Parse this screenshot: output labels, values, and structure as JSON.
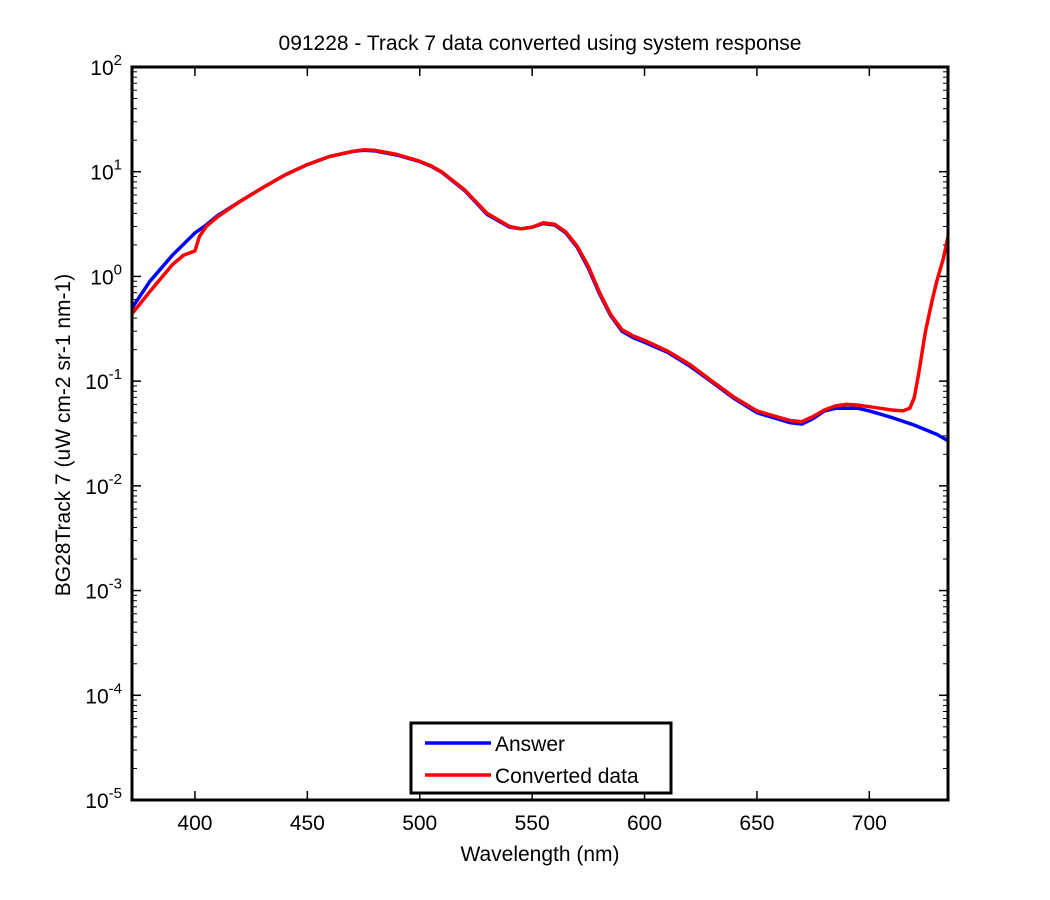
{
  "chart_data": {
    "type": "line",
    "title": "091228 - Track 7 data converted using system response",
    "xlabel": "Wavelength (nm)",
    "ylabel": "BG28Track 7 (uW cm-2 sr-1 nm-1)",
    "xlim": [
      372,
      735
    ],
    "ylim": [
      1e-05,
      100
    ],
    "yscale": "log",
    "grid": false,
    "legend_position": "bottom-center",
    "xticks": [
      400,
      450,
      500,
      550,
      600,
      650,
      700
    ],
    "xtick_labels": [
      "400",
      "450",
      "500",
      "550",
      "600",
      "650",
      "700"
    ],
    "yticks": [
      {
        "value": 1e-05,
        "base": "10",
        "exp": "-5"
      },
      {
        "value": 0.0001,
        "base": "10",
        "exp": "-4"
      },
      {
        "value": 0.001,
        "base": "10",
        "exp": "-3"
      },
      {
        "value": 0.01,
        "base": "10",
        "exp": "-2"
      },
      {
        "value": 0.1,
        "base": "10",
        "exp": "-1"
      },
      {
        "value": 1,
        "base": "10",
        "exp": "0"
      },
      {
        "value": 10,
        "base": "10",
        "exp": "1"
      },
      {
        "value": 100,
        "base": "10",
        "exp": "2"
      }
    ],
    "series": [
      {
        "name": "Answer",
        "color": "#0000ff",
        "x": [
          372,
          380,
          390,
          400,
          405,
          410,
          420,
          430,
          440,
          450,
          460,
          470,
          475,
          480,
          490,
          500,
          505,
          510,
          520,
          530,
          540,
          545,
          550,
          555,
          560,
          565,
          570,
          575,
          580,
          585,
          590,
          595,
          600,
          610,
          620,
          630,
          640,
          650,
          660,
          665,
          670,
          675,
          680,
          685,
          690,
          695,
          700,
          710,
          720,
          730,
          735
        ],
        "y": [
          0.5,
          0.9,
          1.6,
          2.6,
          3.1,
          3.8,
          5.2,
          7.0,
          9.3,
          11.7,
          14.0,
          15.6,
          16.0,
          15.8,
          14.4,
          12.5,
          11.3,
          9.8,
          6.6,
          3.9,
          2.95,
          2.85,
          2.95,
          3.2,
          3.1,
          2.6,
          1.9,
          1.2,
          0.68,
          0.42,
          0.3,
          0.26,
          0.235,
          0.19,
          0.14,
          0.098,
          0.068,
          0.05,
          0.043,
          0.04,
          0.039,
          0.044,
          0.052,
          0.055,
          0.055,
          0.055,
          0.052,
          0.045,
          0.038,
          0.031,
          0.027
        ]
      },
      {
        "name": "Converted data",
        "color": "#ff0000",
        "x": [
          372,
          380,
          390,
          395,
          400,
          402,
          405,
          410,
          420,
          430,
          440,
          450,
          460,
          470,
          475,
          480,
          490,
          500,
          505,
          510,
          520,
          530,
          540,
          545,
          550,
          555,
          560,
          565,
          570,
          575,
          580,
          585,
          590,
          595,
          600,
          610,
          620,
          630,
          640,
          650,
          660,
          665,
          670,
          675,
          680,
          685,
          690,
          695,
          700,
          705,
          710,
          715,
          718,
          720,
          722,
          725,
          728,
          730,
          733,
          735
        ],
        "y": [
          0.44,
          0.72,
          1.3,
          1.6,
          1.75,
          2.4,
          3.0,
          3.7,
          5.2,
          7.0,
          9.3,
          11.7,
          14.0,
          15.6,
          16.2,
          16.0,
          14.6,
          12.6,
          11.4,
          9.9,
          6.7,
          4.0,
          3.0,
          2.85,
          2.95,
          3.25,
          3.15,
          2.65,
          1.95,
          1.25,
          0.7,
          0.43,
          0.31,
          0.27,
          0.245,
          0.195,
          0.145,
          0.1,
          0.07,
          0.052,
          0.045,
          0.042,
          0.041,
          0.046,
          0.053,
          0.058,
          0.06,
          0.059,
          0.057,
          0.055,
          0.053,
          0.052,
          0.055,
          0.07,
          0.12,
          0.3,
          0.6,
          0.9,
          1.5,
          2.4
        ]
      }
    ]
  }
}
